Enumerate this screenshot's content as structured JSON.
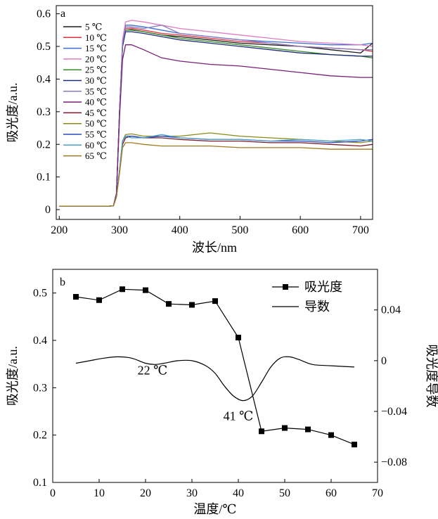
{
  "chart_data": [
    {
      "type": "line",
      "panel_label": "a",
      "xlabel": "波长/nm",
      "ylabel": "吸光度/a.u.",
      "xlim": [
        195,
        720
      ],
      "ylim": [
        -0.03,
        0.625
      ],
      "xticks": [
        "200",
        "300",
        "400",
        "500",
        "600",
        "700"
      ],
      "yticks": [
        "0",
        "0.1",
        "0.2",
        "0.3",
        "0.4",
        "0.5",
        "0.6"
      ],
      "grid": false,
      "legend_position": "top-left",
      "x": [
        200,
        280,
        290,
        295,
        300,
        305,
        310,
        320,
        340,
        370,
        400,
        450,
        500,
        550,
        600,
        650,
        700,
        720
      ],
      "series": [
        {
          "name": "5 ℃",
          "color": "#1a1a1a",
          "values": [
            0.01,
            0.01,
            0.012,
            0.05,
            0.3,
            0.5,
            0.55,
            0.552,
            0.545,
            0.535,
            0.53,
            0.52,
            0.51,
            0.505,
            0.5,
            0.49,
            0.48,
            0.51
          ]
        },
        {
          "name": "10 ℃",
          "color": "#e0303a",
          "values": [
            0.01,
            0.01,
            0.012,
            0.05,
            0.3,
            0.5,
            0.555,
            0.556,
            0.55,
            0.54,
            0.535,
            0.525,
            0.515,
            0.51,
            0.5,
            0.495,
            0.49,
            0.485
          ]
        },
        {
          "name": "15 ℃",
          "color": "#3b6fd8",
          "values": [
            0.01,
            0.01,
            0.012,
            0.05,
            0.3,
            0.51,
            0.565,
            0.565,
            0.56,
            0.55,
            0.54,
            0.53,
            0.52,
            0.515,
            0.51,
            0.505,
            0.505,
            0.51
          ]
        },
        {
          "name": "20 ℃",
          "color": "#e07bc0",
          "values": [
            0.01,
            0.01,
            0.012,
            0.05,
            0.3,
            0.52,
            0.575,
            0.58,
            0.575,
            0.565,
            0.555,
            0.545,
            0.535,
            0.525,
            0.515,
            0.51,
            0.505,
            0.5
          ]
        },
        {
          "name": "25 ℃",
          "color": "#3a8a2a",
          "values": [
            0.01,
            0.01,
            0.012,
            0.05,
            0.3,
            0.5,
            0.55,
            0.55,
            0.545,
            0.535,
            0.525,
            0.515,
            0.505,
            0.495,
            0.485,
            0.475,
            0.47,
            0.465
          ]
        },
        {
          "name": "30 ℃",
          "color": "#1f2a7a",
          "values": [
            0.01,
            0.01,
            0.012,
            0.05,
            0.3,
            0.5,
            0.545,
            0.545,
            0.54,
            0.53,
            0.52,
            0.51,
            0.5,
            0.49,
            0.48,
            0.475,
            0.47,
            0.47
          ]
        },
        {
          "name": "35 ℃",
          "color": "#8a7cc0",
          "values": [
            0.01,
            0.01,
            0.012,
            0.05,
            0.3,
            0.51,
            0.56,
            0.56,
            0.555,
            0.565,
            0.54,
            0.53,
            0.52,
            0.51,
            0.5,
            0.495,
            0.49,
            0.49
          ]
        },
        {
          "name": "40 ℃",
          "color": "#7a1e7a",
          "values": [
            0.01,
            0.01,
            0.012,
            0.05,
            0.28,
            0.46,
            0.505,
            0.505,
            0.49,
            0.465,
            0.455,
            0.445,
            0.44,
            0.43,
            0.42,
            0.41,
            0.405,
            0.405
          ]
        },
        {
          "name": "45 ℃",
          "color": "#7a1a2a",
          "values": [
            0.01,
            0.01,
            0.012,
            0.04,
            0.12,
            0.2,
            0.22,
            0.225,
            0.22,
            0.22,
            0.215,
            0.21,
            0.21,
            0.205,
            0.205,
            0.2,
            0.195,
            0.2
          ]
        },
        {
          "name": "50 ℃",
          "color": "#8a8a1a",
          "values": [
            0.01,
            0.01,
            0.012,
            0.04,
            0.12,
            0.21,
            0.23,
            0.232,
            0.225,
            0.225,
            0.225,
            0.235,
            0.225,
            0.22,
            0.215,
            0.21,
            0.205,
            0.21
          ]
        },
        {
          "name": "55 ℃",
          "color": "#2a4ac0",
          "values": [
            0.01,
            0.01,
            0.012,
            0.04,
            0.12,
            0.21,
            0.225,
            0.225,
            0.22,
            0.225,
            0.22,
            0.215,
            0.215,
            0.21,
            0.21,
            0.205,
            0.21,
            0.215
          ]
        },
        {
          "name": "60 ℃",
          "color": "#4aa0c8",
          "values": [
            0.01,
            0.01,
            0.012,
            0.04,
            0.12,
            0.21,
            0.225,
            0.22,
            0.22,
            0.23,
            0.22,
            0.215,
            0.215,
            0.21,
            0.215,
            0.21,
            0.215,
            0.21
          ]
        },
        {
          "name": "65 ℃",
          "color": "#a07a20",
          "values": [
            0.01,
            0.01,
            0.012,
            0.04,
            0.11,
            0.19,
            0.205,
            0.205,
            0.2,
            0.195,
            0.195,
            0.195,
            0.19,
            0.19,
            0.19,
            0.185,
            0.185,
            0.185
          ]
        }
      ]
    },
    {
      "type": "line",
      "panel_label": "b",
      "xlabel": "温度/℃",
      "ylabel": "吸光度/a.u.",
      "ylabel_right": "吸光度导数",
      "xlim": [
        0,
        70
      ],
      "ylim": [
        0.1,
        0.55
      ],
      "ylim_right": [
        -0.096,
        0.072
      ],
      "xticks": [
        "0",
        "10",
        "20",
        "30",
        "40",
        "50",
        "60",
        "70"
      ],
      "yticks": [
        "0.1",
        "0.2",
        "0.3",
        "0.4",
        "0.5"
      ],
      "yticks_right": [
        "0.04",
        "0",
        "−0.04",
        "−0.08"
      ],
      "grid": false,
      "legend_position": "top-right",
      "series": [
        {
          "name": "吸光度",
          "axis": "left",
          "marker": "square",
          "color": "#000000",
          "x": [
            5,
            10,
            15,
            20,
            25,
            30,
            35,
            40,
            45,
            50,
            55,
            60,
            65
          ],
          "values": [
            0.492,
            0.485,
            0.508,
            0.506,
            0.477,
            0.475,
            0.483,
            0.406,
            0.208,
            0.215,
            0.212,
            0.2,
            0.18
          ]
        },
        {
          "name": "导数",
          "axis": "right",
          "marker": "none",
          "color": "#000000",
          "x": [
            5,
            8,
            11,
            14,
            17,
            20,
            22,
            24,
            27,
            30,
            33,
            35,
            37,
            39,
            41,
            43,
            45,
            47,
            49,
            51,
            53,
            56,
            60,
            65
          ],
          "values": [
            -0.002,
            0.0,
            0.002,
            0.003,
            0.002,
            -0.002,
            -0.003,
            -0.002,
            0.0,
            0.0,
            -0.004,
            -0.01,
            -0.02,
            -0.028,
            -0.0315,
            -0.028,
            -0.017,
            -0.005,
            0.002,
            0.003,
            0.001,
            -0.003,
            -0.004,
            -0.005
          ]
        }
      ],
      "annotations": [
        {
          "text": "22 ℃",
          "x": 21.5,
          "y_right": -0.011
        },
        {
          "text": "41 ℃",
          "x": 40,
          "y_right": -0.047
        }
      ]
    }
  ]
}
